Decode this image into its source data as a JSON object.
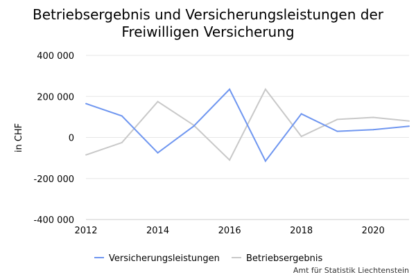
{
  "chart_data": {
    "type": "line",
    "title_lines": [
      "Betriebsergebnis und Versicherungsleistungen der",
      "Freiwilligen Versicherung"
    ],
    "ylabel": "in CHF",
    "xlabel": "",
    "x": [
      2012,
      2013,
      2014,
      2015,
      2016,
      2017,
      2018,
      2019,
      2020,
      2021
    ],
    "xticks": [
      "2012",
      "2014",
      "2016",
      "2018",
      "2020"
    ],
    "ylim": [
      -400000,
      400000
    ],
    "yticks": [
      {
        "value": 400000,
        "label": "400 000"
      },
      {
        "value": 200000,
        "label": "200 000"
      },
      {
        "value": 0,
        "label": "0"
      },
      {
        "value": -200000,
        "label": "-200 000"
      },
      {
        "value": -400000,
        "label": "-400 000"
      }
    ],
    "grid": true,
    "legend_position": "bottom",
    "series": [
      {
        "name": "Versicherungsleistungen",
        "color": "#6f96f0",
        "values": [
          165000,
          105000,
          -75000,
          55000,
          235000,
          -115000,
          115000,
          30000,
          38000,
          55000
        ]
      },
      {
        "name": "Betriebsergebnis",
        "color": "#c8c8c8",
        "values": [
          -85000,
          -25000,
          175000,
          60000,
          -110000,
          235000,
          5000,
          88000,
          98000,
          80000
        ]
      }
    ],
    "source": "Amt für Statistik Liechtenstein"
  }
}
